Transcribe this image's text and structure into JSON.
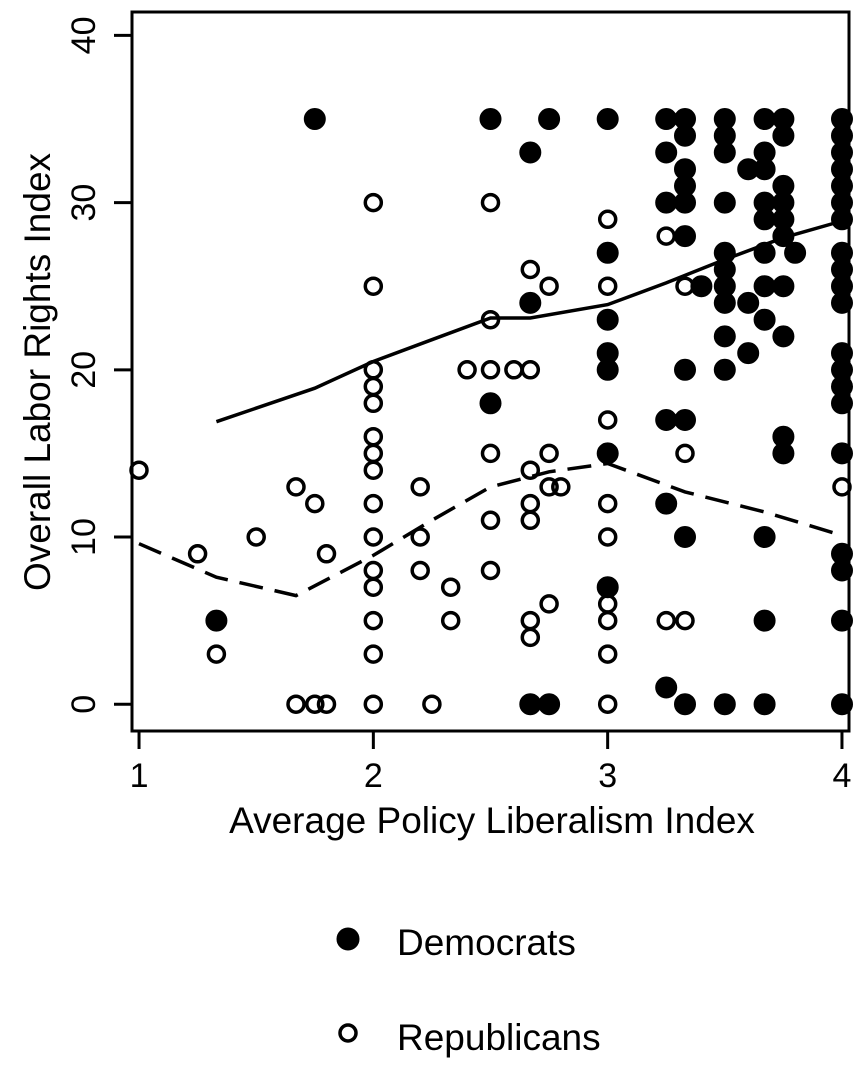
{
  "chart_data": {
    "type": "scatter",
    "title": "",
    "xlabel": "Average Policy Liberalism Index",
    "ylabel": "Overall Labor Rights Index",
    "xlim": [
      0.97,
      4.03
    ],
    "ylim": [
      -1.6,
      41.4
    ],
    "xticks": [
      1,
      2,
      3,
      4
    ],
    "yticks": [
      0,
      10,
      20,
      30,
      40
    ],
    "grid": false,
    "legend_position": "bottom",
    "series": [
      {
        "name": "Democrats",
        "marker": "filled-circle",
        "color": "#000000",
        "points": [
          [
            1.75,
            35
          ],
          [
            2.5,
            35
          ],
          [
            2.75,
            35
          ],
          [
            3,
            35
          ],
          [
            3.25,
            35
          ],
          [
            3.33,
            35
          ],
          [
            3.5,
            35
          ],
          [
            3.67,
            35
          ],
          [
            3.75,
            35
          ],
          [
            4,
            35
          ],
          [
            2.67,
            33
          ],
          [
            3.25,
            33
          ],
          [
            3.33,
            34
          ],
          [
            3.5,
            34
          ],
          [
            3.67,
            33
          ],
          [
            3.75,
            34
          ],
          [
            4,
            34
          ],
          [
            3.5,
            33
          ],
          [
            4,
            33
          ],
          [
            3.33,
            32
          ],
          [
            3.6,
            32
          ],
          [
            3.67,
            32
          ],
          [
            4,
            32
          ],
          [
            3.33,
            31
          ],
          [
            3.75,
            31
          ],
          [
            4,
            31
          ],
          [
            3.25,
            30
          ],
          [
            3.33,
            30
          ],
          [
            3.5,
            30
          ],
          [
            3.67,
            30
          ],
          [
            3.75,
            30
          ],
          [
            4,
            30
          ],
          [
            3.67,
            29
          ],
          [
            3.75,
            29
          ],
          [
            4,
            29
          ],
          [
            3.33,
            28
          ],
          [
            3.75,
            28
          ],
          [
            3,
            27
          ],
          [
            3.5,
            27
          ],
          [
            3.67,
            27
          ],
          [
            3.8,
            27
          ],
          [
            4,
            27
          ],
          [
            3.5,
            26
          ],
          [
            4,
            26
          ],
          [
            3.4,
            25
          ],
          [
            3.5,
            25
          ],
          [
            3.67,
            25
          ],
          [
            3.75,
            25
          ],
          [
            4,
            25
          ],
          [
            2.67,
            24
          ],
          [
            3.5,
            24
          ],
          [
            3.6,
            24
          ],
          [
            4,
            24
          ],
          [
            3,
            23
          ],
          [
            3.67,
            23
          ],
          [
            3.5,
            22
          ],
          [
            3.75,
            22
          ],
          [
            3,
            21
          ],
          [
            3.6,
            21
          ],
          [
            4,
            21
          ],
          [
            3,
            20
          ],
          [
            3.33,
            20
          ],
          [
            3.5,
            20
          ],
          [
            4,
            20
          ],
          [
            4,
            19
          ],
          [
            2.5,
            18
          ],
          [
            4,
            18
          ],
          [
            3.25,
            17
          ],
          [
            3.33,
            17
          ],
          [
            3.75,
            16
          ],
          [
            3,
            15
          ],
          [
            3.75,
            15
          ],
          [
            4,
            15
          ],
          [
            3.25,
            12
          ],
          [
            3.33,
            10
          ],
          [
            3.67,
            10
          ],
          [
            4,
            9
          ],
          [
            4,
            8
          ],
          [
            3,
            7
          ],
          [
            1.33,
            5
          ],
          [
            3.67,
            5
          ],
          [
            4,
            5
          ],
          [
            3.25,
            1
          ],
          [
            2.67,
            0
          ],
          [
            2.75,
            0
          ],
          [
            3.33,
            0
          ],
          [
            3.5,
            0
          ],
          [
            3.67,
            0
          ],
          [
            4,
            0
          ]
        ]
      },
      {
        "name": "Republicans",
        "marker": "hollow-circle",
        "color": "#000000",
        "points": [
          [
            2,
            30
          ],
          [
            2.5,
            30
          ],
          [
            3,
            29
          ],
          [
            3.25,
            28
          ],
          [
            2.67,
            26
          ],
          [
            2,
            25
          ],
          [
            2.75,
            25
          ],
          [
            3,
            25
          ],
          [
            3.33,
            25
          ],
          [
            2.5,
            23
          ],
          [
            3,
            23
          ],
          [
            2,
            20
          ],
          [
            2.4,
            20
          ],
          [
            2.5,
            20
          ],
          [
            2.6,
            20
          ],
          [
            2.67,
            20
          ],
          [
            2,
            19
          ],
          [
            2,
            18
          ],
          [
            3,
            17
          ],
          [
            2,
            16
          ],
          [
            2,
            15
          ],
          [
            2.5,
            15
          ],
          [
            2.75,
            15
          ],
          [
            3.33,
            15
          ],
          [
            1,
            14
          ],
          [
            2,
            14
          ],
          [
            2.67,
            14
          ],
          [
            1.67,
            13
          ],
          [
            2.2,
            13
          ],
          [
            2.75,
            13
          ],
          [
            2.8,
            13
          ],
          [
            4,
            13
          ],
          [
            1.75,
            12
          ],
          [
            2,
            12
          ],
          [
            2.67,
            12
          ],
          [
            3,
            12
          ],
          [
            2.5,
            11
          ],
          [
            2.67,
            11
          ],
          [
            1.5,
            10
          ],
          [
            2,
            10
          ],
          [
            2.2,
            10
          ],
          [
            3,
            10
          ],
          [
            1.25,
            9
          ],
          [
            1.8,
            9
          ],
          [
            2,
            8
          ],
          [
            2.2,
            8
          ],
          [
            2.5,
            8
          ],
          [
            2,
            7
          ],
          [
            2.33,
            7
          ],
          [
            2.75,
            6
          ],
          [
            3,
            6
          ],
          [
            2,
            5
          ],
          [
            2.33,
            5
          ],
          [
            2.67,
            5
          ],
          [
            3,
            5
          ],
          [
            3.25,
            5
          ],
          [
            3.33,
            5
          ],
          [
            2.67,
            4
          ],
          [
            1.33,
            3
          ],
          [
            2,
            3
          ],
          [
            3,
            3
          ],
          [
            1.67,
            0
          ],
          [
            1.75,
            0
          ],
          [
            1.8,
            0
          ],
          [
            2,
            0
          ],
          [
            2.25,
            0
          ],
          [
            3,
            0
          ]
        ]
      }
    ],
    "smoothers": [
      {
        "name": "Democrats",
        "style": "solid",
        "points": [
          [
            1.33,
            16.9
          ],
          [
            1.75,
            18.9
          ],
          [
            2,
            20.5
          ],
          [
            2.25,
            21.8
          ],
          [
            2.5,
            23.1
          ],
          [
            2.67,
            23.1
          ],
          [
            3,
            23.9
          ],
          [
            3.25,
            25.2
          ],
          [
            3.5,
            26.6
          ],
          [
            3.75,
            27.9
          ],
          [
            4,
            28.9
          ]
        ]
      },
      {
        "name": "Republicans",
        "style": "dashed",
        "points": [
          [
            1,
            9.6
          ],
          [
            1.33,
            7.6
          ],
          [
            1.67,
            6.5
          ],
          [
            2,
            8.9
          ],
          [
            2.25,
            11.0
          ],
          [
            2.5,
            13.0
          ],
          [
            2.75,
            13.9
          ],
          [
            3,
            14.4
          ],
          [
            3.33,
            12.7
          ],
          [
            3.67,
            11.5
          ],
          [
            4,
            10.1
          ]
        ]
      }
    ]
  }
}
